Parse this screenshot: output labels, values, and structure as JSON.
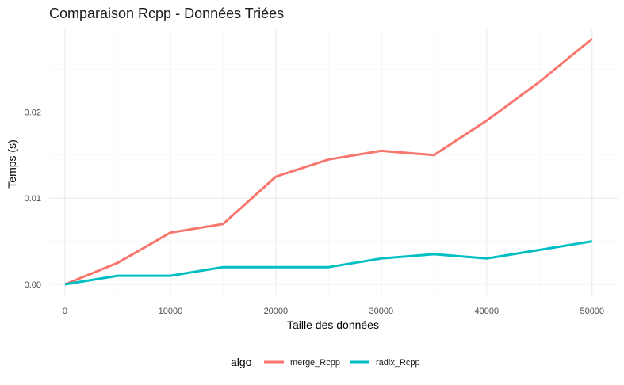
{
  "chart_data": {
    "type": "line",
    "title": "Comparaison Rcpp - Données Triées",
    "xlabel": "Taille des données",
    "ylabel": "Temps (s)",
    "xlim": [
      -1500,
      52500
    ],
    "ylim": [
      -0.0012,
      0.0297
    ],
    "x_ticks": [
      0,
      10000,
      20000,
      30000,
      40000,
      50000
    ],
    "x_tick_labels": [
      "0",
      "10000",
      "20000",
      "30000",
      "40000",
      "50000"
    ],
    "y_ticks": [
      0.0,
      0.01,
      0.02
    ],
    "y_tick_labels": [
      "0.00",
      "0.01",
      "0.02"
    ],
    "grid": true,
    "legend": {
      "title": "algo",
      "position": "bottom"
    },
    "x": [
      0,
      5000,
      10000,
      15000,
      20000,
      25000,
      30000,
      35000,
      40000,
      45000,
      50000
    ],
    "series": [
      {
        "name": "merge_Rcpp",
        "color": "#F8766D",
        "values": [
          0.0,
          0.0025,
          0.006,
          0.007,
          0.0125,
          0.0145,
          0.0155,
          0.015,
          0.019,
          0.0235,
          0.0285
        ]
      },
      {
        "name": "radix_Rcpp",
        "color": "#00BFC4",
        "values": [
          0.0,
          0.001,
          0.001,
          0.002,
          0.002,
          0.002,
          0.003,
          0.0035,
          0.003,
          0.004,
          0.005
        ]
      }
    ]
  }
}
